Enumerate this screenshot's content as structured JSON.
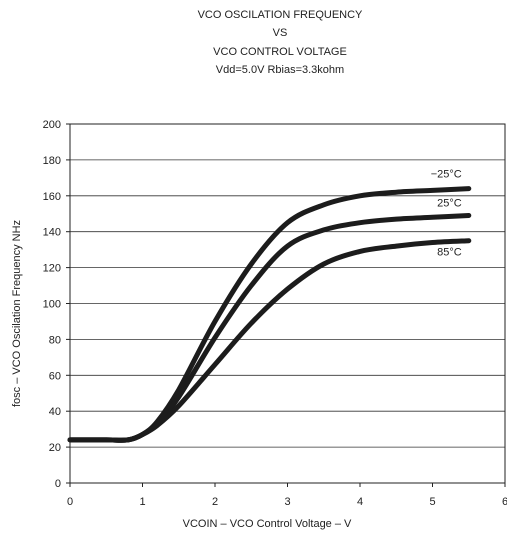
{
  "chart_data": {
    "type": "line",
    "title_lines": [
      "VCO OSCILATION FREQUENCY",
      "VS",
      "VCO CONTROL VOLTAGE",
      "Vdd=5.0V Rbias=3.3kohm"
    ],
    "xlabel": "VCOIN – VCO Control Voltage – V",
    "ylabel": "fosc – VCO Oscilation Frequency NHz",
    "xlim": [
      0,
      6
    ],
    "ylim": [
      0,
      200
    ],
    "x_ticks": [
      0,
      1,
      2,
      3,
      4,
      5,
      6
    ],
    "y_ticks": [
      0,
      20,
      40,
      60,
      80,
      100,
      120,
      140,
      160,
      180,
      200
    ],
    "grid": "horizontal",
    "series": [
      {
        "name": "−25°C",
        "x": [
          0,
          0.5,
          0.8,
          1.0,
          1.2,
          1.5,
          2.0,
          2.5,
          3.0,
          3.5,
          4.0,
          4.5,
          5.0,
          5.5
        ],
        "y": [
          24,
          24,
          24,
          27,
          34,
          52,
          90,
          122,
          145,
          155,
          160,
          162,
          163,
          164
        ]
      },
      {
        "name": "25°C",
        "x": [
          0,
          0.5,
          0.8,
          1.0,
          1.2,
          1.5,
          2.0,
          2.5,
          3.0,
          3.5,
          4.0,
          4.5,
          5.0,
          5.5
        ],
        "y": [
          24,
          24,
          24,
          27,
          33,
          48,
          81,
          110,
          132,
          141,
          145,
          147,
          148,
          149
        ]
      },
      {
        "name": "85°C",
        "x": [
          0,
          0.5,
          0.8,
          1.0,
          1.2,
          1.5,
          2.0,
          2.5,
          3.0,
          3.5,
          4.0,
          4.5,
          5.0,
          5.5
        ],
        "y": [
          24,
          24,
          24,
          27,
          32,
          43,
          66,
          89,
          108,
          122,
          129,
          132,
          134,
          135
        ]
      }
    ]
  },
  "colors": {
    "curve": "#1c1c1c",
    "axis": "#222222",
    "grid": "#333333"
  }
}
